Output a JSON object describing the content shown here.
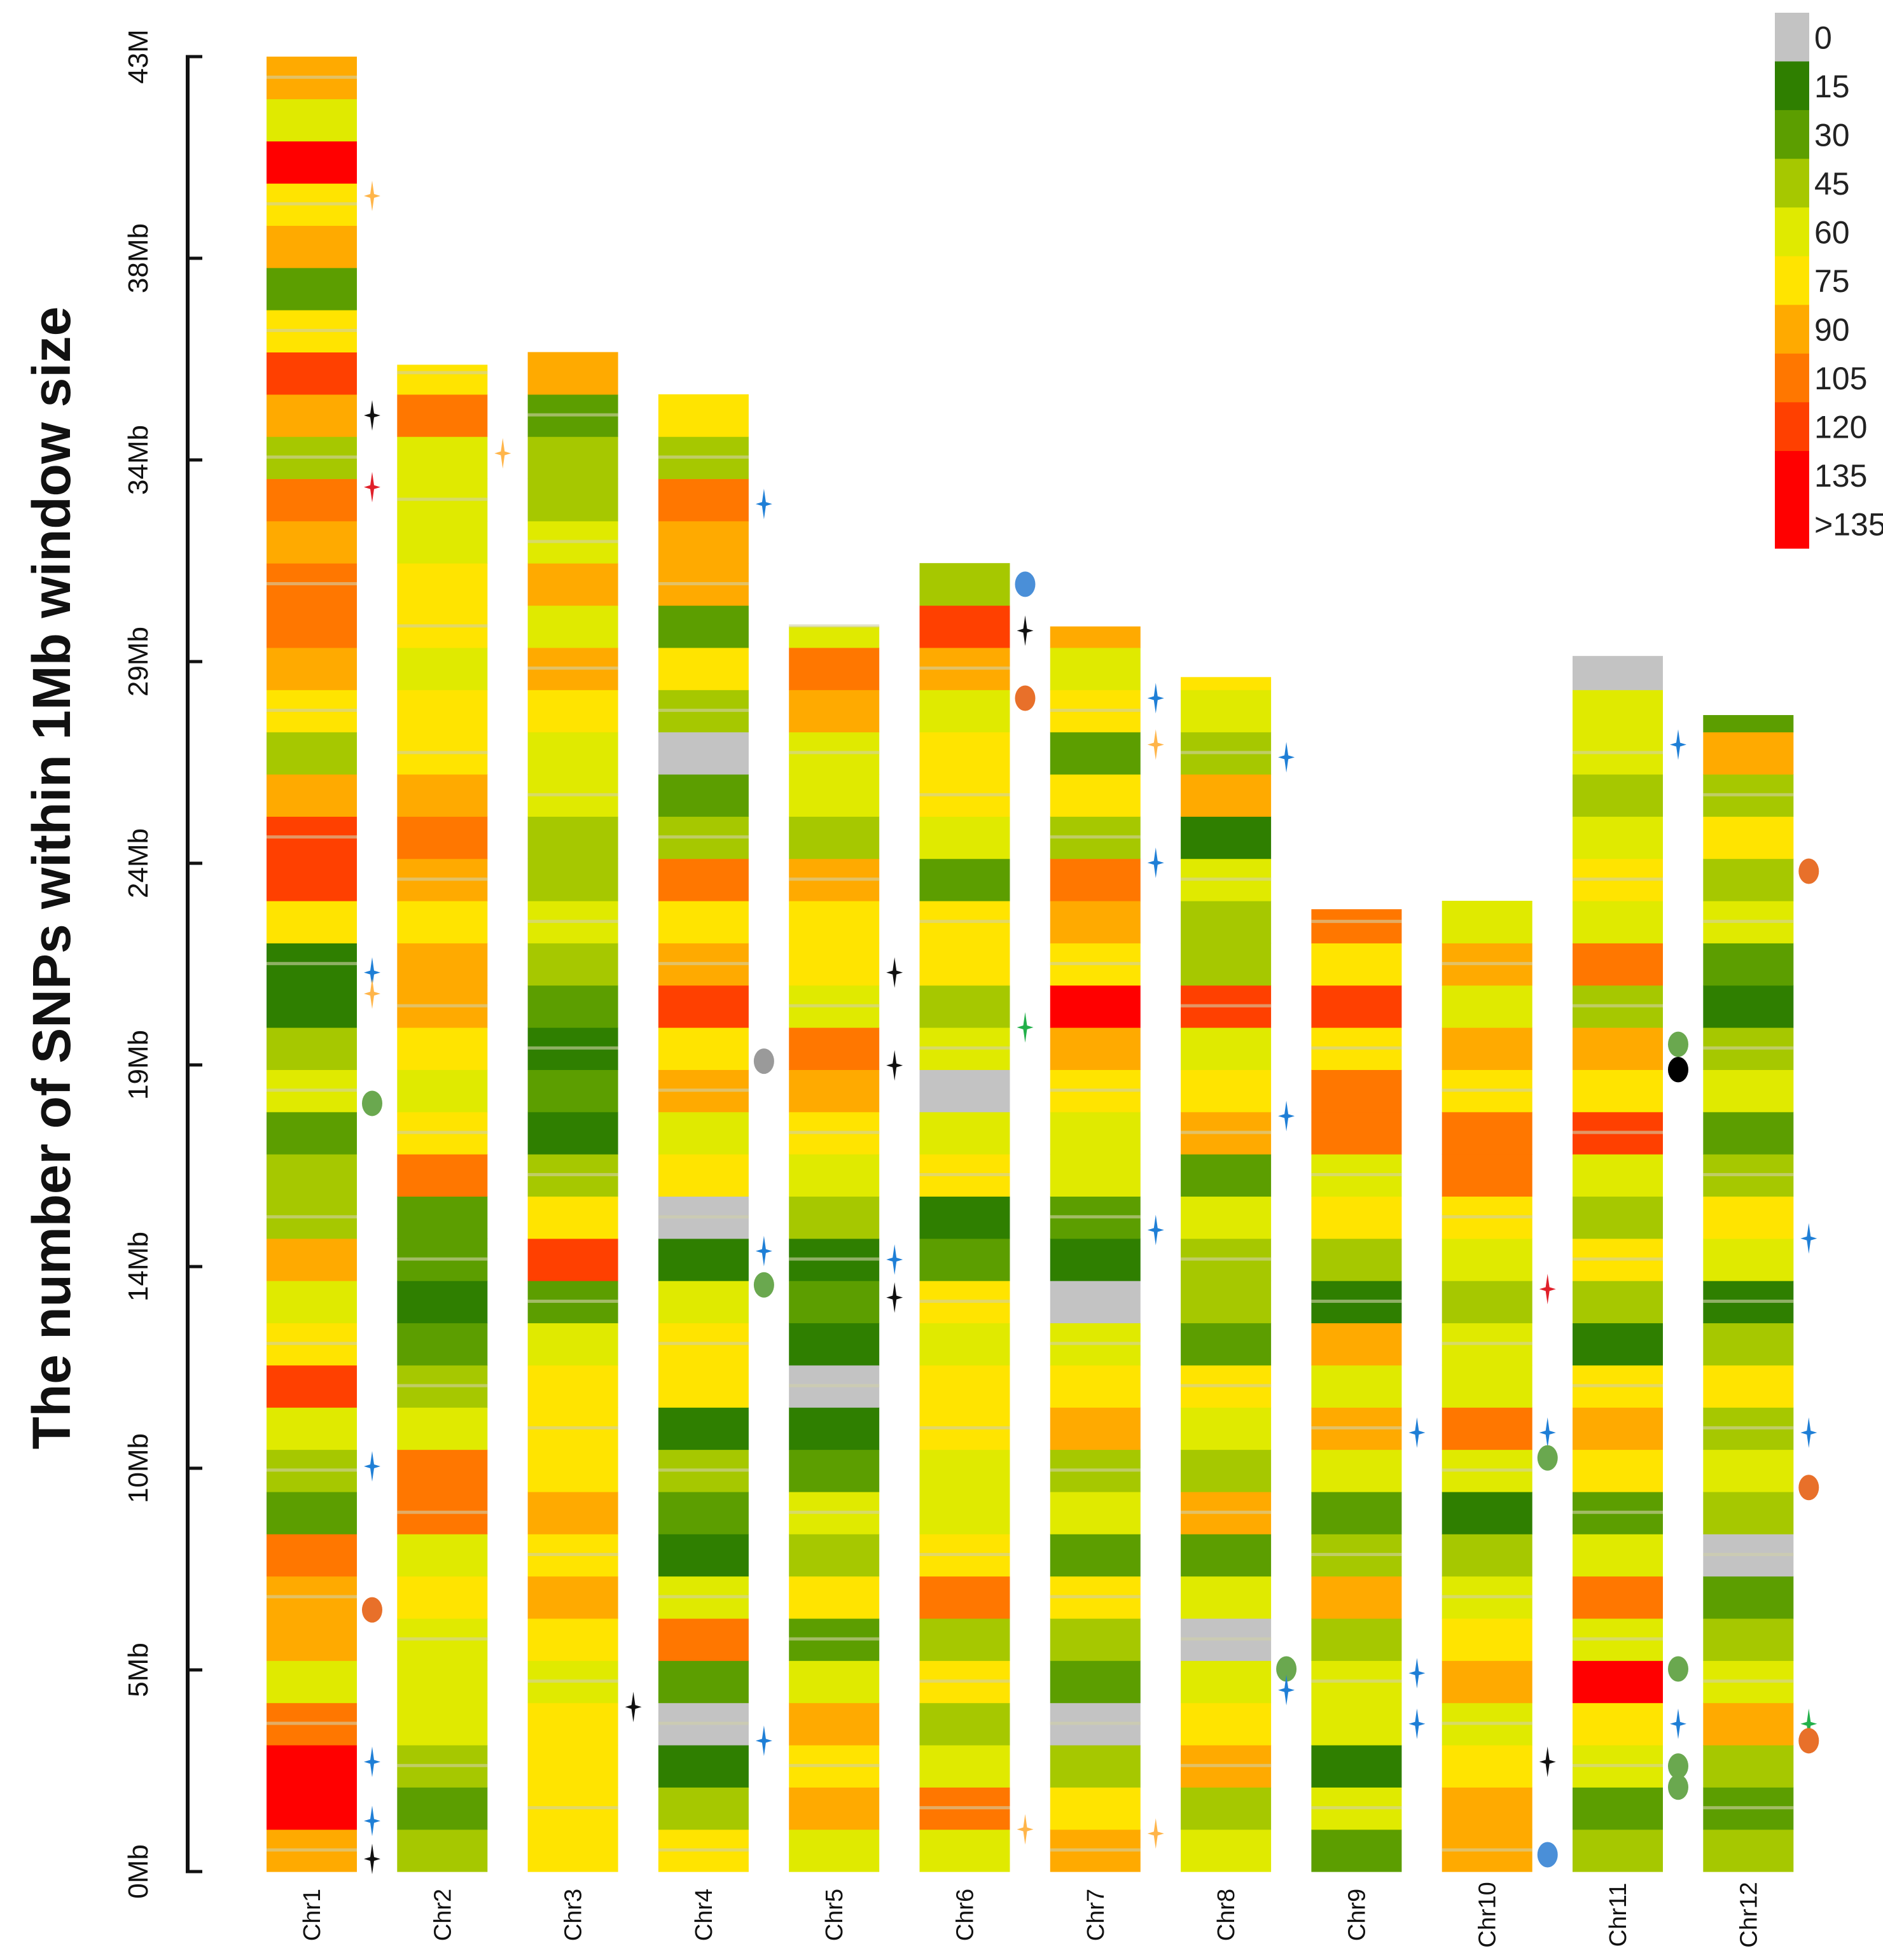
{
  "chart_data": {
    "type": "heatmap",
    "title": "",
    "ylabel": "The number of SNPs within 1Mb window size",
    "xlabel": "",
    "ylim_mb": [
      0,
      43
    ],
    "y_ticks": [
      {
        "label": "0Mb"
      },
      {
        "label": "5Mb"
      },
      {
        "label": "10Mb"
      },
      {
        "label": "14Mb"
      },
      {
        "label": "19Mb"
      },
      {
        "label": "24Mb"
      },
      {
        "label": "29Mb"
      },
      {
        "label": "34Mb"
      },
      {
        "label": "38Mb"
      },
      {
        "label": "43M"
      }
    ],
    "legend": {
      "placement": "top-right",
      "entries": [
        {
          "label": "0",
          "color": "#c3c3c3"
        },
        {
          "label": "15",
          "color": "#2f7f00"
        },
        {
          "label": "30",
          "color": "#5c9e00"
        },
        {
          "label": "45",
          "color": "#a6c800"
        },
        {
          "label": "60",
          "color": "#e0ea00"
        },
        {
          "label": "75",
          "color": "#ffe400"
        },
        {
          "label": "90",
          "color": "#ffaa00"
        },
        {
          "label": "105",
          "color": "#ff7700"
        },
        {
          "label": "120",
          "color": "#ff4000"
        },
        {
          "label": "135",
          "color": "#ff0000"
        },
        {
          "label": ">135",
          "color": "#ff0000"
        }
      ]
    },
    "bin_size_mb": 1,
    "bin_codes_note": "each character = legend entry index (0-9, a=10), bins from 0Mb upward",
    "chromosomes": [
      {
        "name": "Chr1",
        "length_mb": 43.2,
        "bins": "6997466723485463324311588635677673685265946"
      },
      {
        "name": "Chr2",
        "length_mb": 35.7,
        "bins": "323444547743212275456656765545544475"
      },
      {
        "name": "Chr3",
        "length_mb": 36.2,
        "bins": "555545656555428531212343344564643326"
      },
      {
        "name": "Chr4",
        "length_mb": 35.3,
        "bins": "53102741231554105465865732035266735"
      },
      {
        "name": "Chr5",
        "length_mb": 29.5,
        "bins": "465642534210121345674556344674"
      },
      {
        "name": "Chr6",
        "length_mb": 31.0,
        "bins": "4743537544554521540435524554683"
      },
      {
        "name": "Chr7",
        "length_mb": 29.5,
        "bins": "653023524365401244569567352546"
      },
      {
        "name": "Chr8",
        "length_mb": 28.3,
        "bins": "43654042634523342654833416345"
      },
      {
        "name": "Chr9",
        "length_mb": 22.8,
        "bins": "24144363246461354775857"
      },
      {
        "name": "Chr10",
        "length_mb": 23.1,
        "bins": "66546543147443457756464"
      },
      {
        "name": "Chr11",
        "length_mb": 28.8,
        "bins": "324594742565135348563745434402"
      },
      {
        "name": "Chr12",
        "length_mb": 27.4,
        "bins": "3236432034353145324312435362"
      }
    ],
    "markers": [
      {
        "chr": 0,
        "mb": 39.7,
        "shape": "star",
        "color": "#ffb54a"
      },
      {
        "chr": 0,
        "mb": 34.5,
        "shape": "star",
        "color": "#111111"
      },
      {
        "chr": 0,
        "mb": 32.8,
        "shape": "star",
        "color": "#e0202a"
      },
      {
        "chr": 0,
        "mb": 21.3,
        "shape": "star",
        "color": "#1f7fd6"
      },
      {
        "chr": 0,
        "mb": 20.8,
        "shape": "star",
        "color": "#ffb54a"
      },
      {
        "chr": 0,
        "mb": 18.2,
        "shape": "ellipse",
        "color": "#6aa84f"
      },
      {
        "chr": 0,
        "mb": 9.6,
        "shape": "star",
        "color": "#1f7fd6"
      },
      {
        "chr": 0,
        "mb": 6.2,
        "shape": "ellipse",
        "color": "#e8702a"
      },
      {
        "chr": 0,
        "mb": 2.6,
        "shape": "star",
        "color": "#1f7fd6"
      },
      {
        "chr": 0,
        "mb": 1.2,
        "shape": "star",
        "color": "#1f7fd6"
      },
      {
        "chr": 0,
        "mb": 0.3,
        "shape": "star",
        "color": "#111111"
      },
      {
        "chr": 1,
        "mb": 33.6,
        "shape": "star",
        "color": "#ffb54a"
      },
      {
        "chr": 2,
        "mb": 3.9,
        "shape": "star",
        "color": "#111111"
      },
      {
        "chr": 3,
        "mb": 32.4,
        "shape": "star",
        "color": "#1f7fd6"
      },
      {
        "chr": 3,
        "mb": 19.2,
        "shape": "ellipse",
        "color": "#9a9a9a"
      },
      {
        "chr": 3,
        "mb": 14.7,
        "shape": "star",
        "color": "#1f7fd6"
      },
      {
        "chr": 3,
        "mb": 13.9,
        "shape": "ellipse",
        "color": "#6aa84f"
      },
      {
        "chr": 3,
        "mb": 3.1,
        "shape": "star",
        "color": "#1f7fd6"
      },
      {
        "chr": 4,
        "mb": 21.3,
        "shape": "star",
        "color": "#111111"
      },
      {
        "chr": 4,
        "mb": 19.1,
        "shape": "star",
        "color": "#111111"
      },
      {
        "chr": 4,
        "mb": 14.5,
        "shape": "star",
        "color": "#1f7fd6"
      },
      {
        "chr": 4,
        "mb": 13.6,
        "shape": "star",
        "color": "#111111"
      },
      {
        "chr": 5,
        "mb": 30.5,
        "shape": "ellipse",
        "color": "#4a8fd8"
      },
      {
        "chr": 5,
        "mb": 29.4,
        "shape": "star",
        "color": "#111111"
      },
      {
        "chr": 5,
        "mb": 27.8,
        "shape": "ellipse",
        "color": "#e8702a"
      },
      {
        "chr": 5,
        "mb": 20.0,
        "shape": "star",
        "color": "#22b04a"
      },
      {
        "chr": 5,
        "mb": 1.0,
        "shape": "star",
        "color": "#ffb54a"
      },
      {
        "chr": 6,
        "mb": 27.8,
        "shape": "star",
        "color": "#1f7fd6"
      },
      {
        "chr": 6,
        "mb": 26.7,
        "shape": "star",
        "color": "#ffb54a"
      },
      {
        "chr": 6,
        "mb": 23.9,
        "shape": "star",
        "color": "#1f7fd6"
      },
      {
        "chr": 6,
        "mb": 15.2,
        "shape": "star",
        "color": "#1f7fd6"
      },
      {
        "chr": 6,
        "mb": 0.9,
        "shape": "star",
        "color": "#ffb54a"
      },
      {
        "chr": 7,
        "mb": 26.4,
        "shape": "star",
        "color": "#1f7fd6"
      },
      {
        "chr": 7,
        "mb": 17.9,
        "shape": "star",
        "color": "#1f7fd6"
      },
      {
        "chr": 7,
        "mb": 4.8,
        "shape": "ellipse",
        "color": "#6aa84f"
      },
      {
        "chr": 7,
        "mb": 4.3,
        "shape": "star",
        "color": "#1f7fd6"
      },
      {
        "chr": 8,
        "mb": 10.4,
        "shape": "star",
        "color": "#1f7fd6"
      },
      {
        "chr": 8,
        "mb": 4.7,
        "shape": "star",
        "color": "#1f7fd6"
      },
      {
        "chr": 8,
        "mb": 3.5,
        "shape": "star",
        "color": "#1f7fd6"
      },
      {
        "chr": 9,
        "mb": 13.8,
        "shape": "star",
        "color": "#e0202a"
      },
      {
        "chr": 9,
        "mb": 10.4,
        "shape": "star",
        "color": "#1f7fd6"
      },
      {
        "chr": 9,
        "mb": 9.8,
        "shape": "ellipse",
        "color": "#6aa84f"
      },
      {
        "chr": 9,
        "mb": 2.6,
        "shape": "star",
        "color": "#111111"
      },
      {
        "chr": 9,
        "mb": 0.4,
        "shape": "ellipse",
        "color": "#4a8fd8"
      },
      {
        "chr": 10,
        "mb": 26.7,
        "shape": "star",
        "color": "#1f7fd6"
      },
      {
        "chr": 10,
        "mb": 19.6,
        "shape": "ellipse",
        "color": "#6aa84f"
      },
      {
        "chr": 10,
        "mb": 19.0,
        "shape": "ellipse",
        "color": "#000000"
      },
      {
        "chr": 10,
        "mb": 4.8,
        "shape": "ellipse",
        "color": "#6aa84f"
      },
      {
        "chr": 10,
        "mb": 3.5,
        "shape": "star",
        "color": "#1f7fd6"
      },
      {
        "chr": 10,
        "mb": 2.5,
        "shape": "ellipse",
        "color": "#6aa84f"
      },
      {
        "chr": 10,
        "mb": 2.0,
        "shape": "ellipse",
        "color": "#6aa84f"
      },
      {
        "chr": 11,
        "mb": 23.7,
        "shape": "ellipse",
        "color": "#e8702a"
      },
      {
        "chr": 11,
        "mb": 15.0,
        "shape": "star",
        "color": "#1f7fd6"
      },
      {
        "chr": 11,
        "mb": 10.4,
        "shape": "star",
        "color": "#1f7fd6"
      },
      {
        "chr": 11,
        "mb": 9.1,
        "shape": "ellipse",
        "color": "#e8702a"
      },
      {
        "chr": 11,
        "mb": 3.5,
        "shape": "star",
        "color": "#22b04a"
      },
      {
        "chr": 11,
        "mb": 3.1,
        "shape": "ellipse",
        "color": "#e8702a"
      }
    ]
  }
}
